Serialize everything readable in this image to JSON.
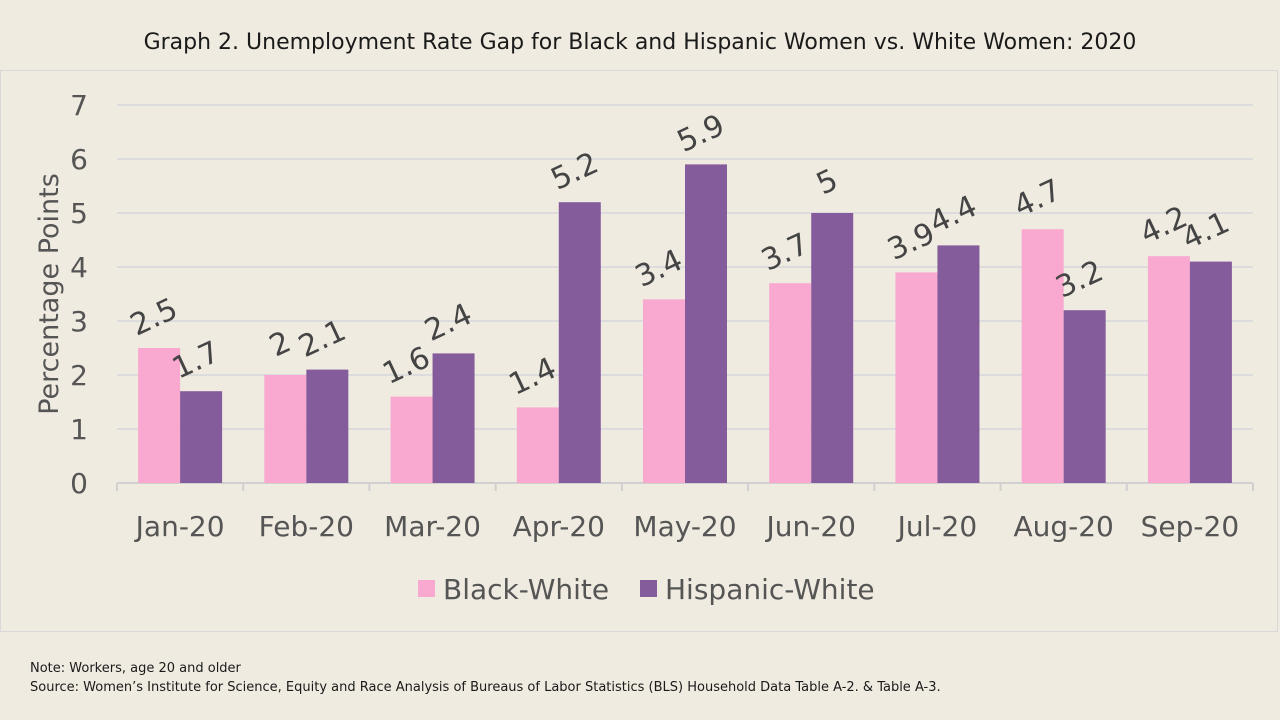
{
  "chart_data": {
    "type": "bar",
    "title": "Graph 2. Unemployment Rate Gap for Black and Hispanic Women vs. White Women: 2020",
    "xlabel": "",
    "ylabel": "Percentage Points",
    "ylim": [
      0,
      7
    ],
    "yticks": [
      "0",
      "1",
      "2",
      "3",
      "4",
      "5",
      "6",
      "7"
    ],
    "grid": true,
    "legend_position": "bottom",
    "categories": [
      "Jan-20",
      "Feb-20",
      "Mar-20",
      "Apr-20",
      "May-20",
      "Jun-20",
      "Jul-20",
      "Aug-20",
      "Sep-20"
    ],
    "series": [
      {
        "name": "Black-White",
        "color": "#f9a8d0",
        "values": [
          2.5,
          2,
          1.6,
          1.4,
          3.4,
          3.7,
          3.9,
          4.7,
          4.2
        ],
        "labels": [
          "2.5",
          "2",
          "1.6",
          "1.4",
          "3.4",
          "3.7",
          "3.9",
          "4.7",
          "4.2"
        ]
      },
      {
        "name": "Hispanic-White",
        "color": "#845b9b",
        "values": [
          1.7,
          2.1,
          2.4,
          5.2,
          5.9,
          5,
          4.4,
          3.2,
          4.1
        ],
        "labels": [
          "1.7",
          "2.1",
          "2.4",
          "5.2",
          "5.9",
          "5",
          "4.4",
          "3.2",
          "4.1"
        ]
      }
    ]
  },
  "notes": {
    "note": "Note: Workers, age 20 and older",
    "source": "Source: Women’s Institute for Science, Equity and Race Analysis of Bureaus of Labor Statistics (BLS) Household Data Table A-2. & Table A-3."
  }
}
